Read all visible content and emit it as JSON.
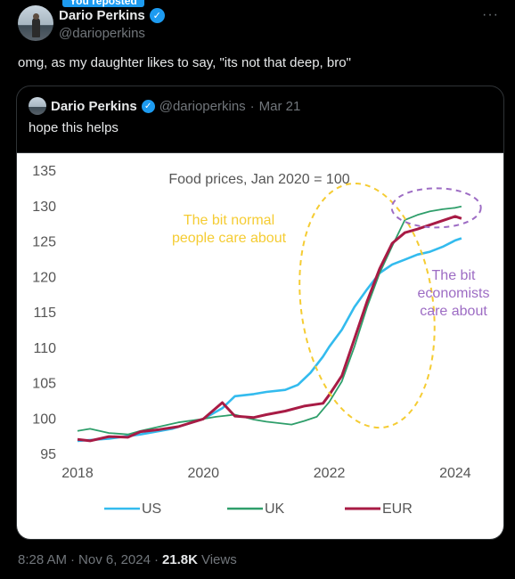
{
  "repost_label": "You reposted",
  "author": {
    "name": "Dario Perkins",
    "handle": "@darioperkins"
  },
  "tweet_text": "omg, as my daughter likes to say, \"its not that deep, bro\"",
  "more_label": "···",
  "quoted": {
    "name": "Dario Perkins",
    "handle": "@darioperkins",
    "dot": "·",
    "date": "Mar 21",
    "text": "hope this helps"
  },
  "footer": {
    "time": "8:28 AM",
    "sep1": "·",
    "date": "Nov 6, 2024",
    "sep2": "·",
    "views_count": "21.8K",
    "views_label": "Views"
  },
  "colors": {
    "us": "#33bbee",
    "uk": "#2e9e6a",
    "eur": "#a81b45",
    "accent": "#1d9bf0",
    "yellow": "#f5cc33",
    "purple": "#9d6cc4"
  },
  "chart_data": {
    "type": "line",
    "title": "Food prices, Jan 2020 = 100",
    "xlabel": "",
    "ylabel": "",
    "xlim": [
      2018,
      2024.2
    ],
    "ylim": [
      95,
      135
    ],
    "x_ticks": [
      2018,
      2020,
      2022,
      2024
    ],
    "y_ticks": [
      95,
      100,
      105,
      110,
      115,
      120,
      125,
      130,
      135
    ],
    "series": [
      {
        "name": "US",
        "x": [
          2018.0,
          2018.5,
          2019.0,
          2019.5,
          2020.0,
          2020.3,
          2020.5,
          2020.8,
          2021.0,
          2021.3,
          2021.5,
          2021.7,
          2021.9,
          2022.0,
          2022.2,
          2022.4,
          2022.6,
          2022.8,
          2023.0,
          2023.2,
          2023.4,
          2023.6,
          2023.8,
          2024.0,
          2024.1
        ],
        "values": [
          96.9,
          97.2,
          97.8,
          98.6,
          100.0,
          101.5,
          103.2,
          103.5,
          103.8,
          104.1,
          104.8,
          106.5,
          108.8,
          110.2,
          112.6,
          115.8,
          118.3,
          120.6,
          121.8,
          122.5,
          123.2,
          123.6,
          124.3,
          125.2,
          125.5
        ]
      },
      {
        "name": "UK",
        "x": [
          2018.0,
          2018.2,
          2018.5,
          2018.8,
          2019.0,
          2019.3,
          2019.6,
          2020.0,
          2020.2,
          2020.5,
          2020.8,
          2021.0,
          2021.2,
          2021.4,
          2021.6,
          2021.8,
          2022.0,
          2022.2,
          2022.4,
          2022.6,
          2022.8,
          2023.0,
          2023.2,
          2023.4,
          2023.6,
          2023.8,
          2024.0,
          2024.1
        ],
        "values": [
          98.3,
          98.6,
          98.0,
          97.8,
          98.3,
          98.9,
          99.5,
          100.0,
          100.3,
          100.6,
          99.9,
          99.6,
          99.4,
          99.2,
          99.7,
          100.3,
          102.4,
          105.3,
          110.2,
          115.8,
          120.6,
          124.4,
          128.1,
          128.8,
          129.3,
          129.6,
          129.8,
          130.0
        ]
      },
      {
        "name": "EUR",
        "x": [
          2018.0,
          2018.2,
          2018.5,
          2018.8,
          2019.0,
          2019.3,
          2019.6,
          2020.0,
          2020.3,
          2020.5,
          2020.8,
          2021.0,
          2021.3,
          2021.6,
          2021.9,
          2022.0,
          2022.2,
          2022.4,
          2022.6,
          2022.8,
          2023.0,
          2023.2,
          2023.4,
          2023.6,
          2023.8,
          2024.0,
          2024.1
        ],
        "values": [
          97.1,
          96.9,
          97.5,
          97.4,
          98.2,
          98.5,
          98.9,
          100.0,
          102.3,
          100.4,
          100.2,
          100.6,
          101.1,
          101.8,
          102.2,
          103.4,
          106.1,
          111.3,
          116.6,
          121.2,
          124.8,
          126.3,
          126.8,
          127.4,
          128.0,
          128.6,
          128.3
        ]
      }
    ],
    "annotations": [
      {
        "text": [
          "The bit normal",
          "people care about"
        ],
        "color": "#f5cc33"
      },
      {
        "text": [
          "The bit",
          "economists",
          "care about"
        ],
        "color": "#9d6cc4"
      }
    ],
    "legend": "bottom",
    "grid": false
  }
}
